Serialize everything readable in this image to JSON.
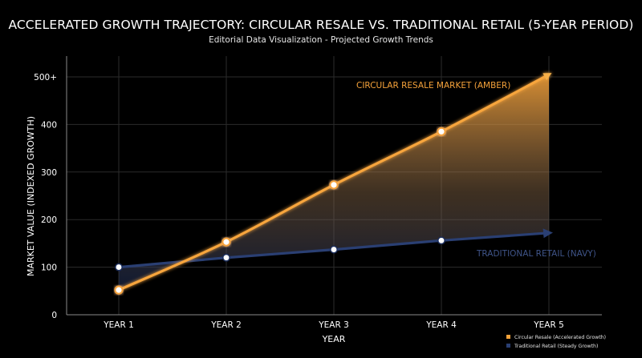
{
  "chart_data": {
    "type": "line",
    "title": "ACCELERATED GROWTH TRAJECTORY: CIRCULAR RESALE VS. TRADITIONAL RETAIL (5-YEAR PERIOD)",
    "subtitle": "Editorial Data Visualization - Projected Growth Trends",
    "xlabel": "YEAR",
    "ylabel": "MARKET VALUE (INDEXED GROWTH)",
    "categories": [
      "YEAR 1",
      "YEAR 2",
      "YEAR 3",
      "YEAR 4",
      "YEAR 5"
    ],
    "yticks": [
      "0",
      "100",
      "200",
      "300",
      "400",
      "500+"
    ],
    "ylim": [
      0,
      500
    ],
    "grid": true,
    "series": [
      {
        "name": "Circular Resale (Accelerated Growth)",
        "inline_label": "CIRCULAR RESALE MARKET (AMBER)",
        "values": [
          52,
          153,
          273,
          385,
          505
        ],
        "color": "#f5a23a"
      },
      {
        "name": "Traditional Retail (Steady Growth)",
        "inline_label": "TRADITIONAL RETAIL (NAVY)",
        "values": [
          100,
          120,
          137,
          156,
          172
        ],
        "color": "#2a3f73"
      }
    ],
    "legend": "bottom-right"
  }
}
